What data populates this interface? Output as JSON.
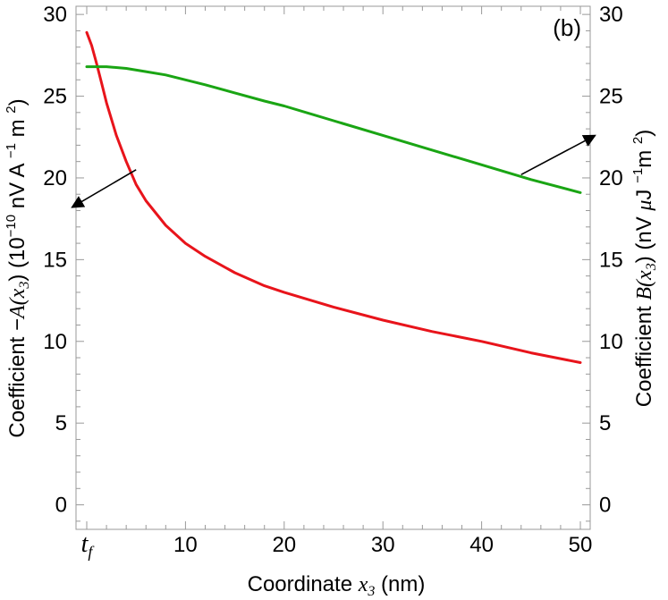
{
  "chart_data": {
    "type": "line",
    "panel_label": "(b)",
    "xlabel": "Coordinate x3 (nm)",
    "xlabel_parts": {
      "pre": "Coordinate ",
      "var": "x",
      "sub": "3",
      "post": "  (nm)"
    },
    "ylabel_left": "Coefficient −A(x3) (10−10 nV A−1 m2)",
    "ylabel_left_parts": {
      "pre": "Coefficient  −",
      "var": "A(x",
      "sub": "3",
      "close": ")",
      "unit_a": "  (10",
      "sup1": "−10",
      "unit_b": " nV A ",
      "sup2": "−1",
      "unit_c": " m ",
      "sup3": "2",
      "unit_d": ")"
    },
    "ylabel_right": "Coefficient B(x3) (nV μJ−1 m2)",
    "ylabel_right_parts": {
      "pre": "Coefficient  ",
      "var": "B(x",
      "sub": "3",
      "close": ")",
      "unit_a": "  (nV ",
      "mu": "μ",
      "unit_b": "J ",
      "sup1": "−1",
      "unit_c": "m ",
      "sup2": "2",
      "unit_d": ")"
    },
    "xlim": [
      0,
      50
    ],
    "ylim_left": [
      -1.5,
      30.5
    ],
    "ylim_right": [
      -1.5,
      30.5
    ],
    "x_ticks": [
      {
        "value": 0,
        "label": "t",
        "sub": "f"
      },
      {
        "value": 10,
        "label": "10"
      },
      {
        "value": 20,
        "label": "20"
      },
      {
        "value": 30,
        "label": "30"
      },
      {
        "value": 40,
        "label": "40"
      },
      {
        "value": 50,
        "label": "50"
      }
    ],
    "y_ticks_left": [
      "0",
      "5",
      "10",
      "15",
      "20",
      "25",
      "30"
    ],
    "y_ticks_right": [
      "0",
      "5",
      "10",
      "15",
      "20",
      "25",
      "30"
    ],
    "grid": false,
    "series": [
      {
        "axis": "left",
        "color": "#e8141b",
        "x": [
          0,
          0.5,
          1,
          1.5,
          2,
          3,
          4,
          5,
          6,
          8,
          10,
          12,
          15,
          18,
          20,
          25,
          30,
          35,
          40,
          45,
          50
        ],
        "y": [
          28.9,
          28.1,
          27.0,
          25.8,
          24.6,
          22.6,
          21.0,
          19.6,
          18.6,
          17.1,
          16.0,
          15.2,
          14.2,
          13.4,
          13.0,
          12.1,
          11.3,
          10.6,
          10.0,
          9.3,
          8.7
        ]
      },
      {
        "axis": "right",
        "color": "#1aa514",
        "x": [
          0,
          1,
          2,
          4,
          6,
          8,
          10,
          12,
          15,
          18,
          20,
          25,
          30,
          35,
          40,
          45,
          50
        ],
        "y": [
          26.8,
          26.8,
          26.8,
          26.7,
          26.5,
          26.3,
          26.0,
          25.7,
          25.2,
          24.7,
          24.4,
          23.5,
          22.6,
          21.7,
          20.8,
          19.9,
          19.1
        ]
      }
    ],
    "annotations": [
      {
        "type": "arrow",
        "from": [
          5,
          20.5
        ],
        "to": [
          -1.5,
          18.2
        ],
        "axis": "left",
        "meaning": "red curve uses left axis"
      },
      {
        "type": "arrow",
        "from": [
          44,
          20.2
        ],
        "to": [
          51.5,
          22.6
        ],
        "axis": "right",
        "meaning": "green curve uses right axis"
      }
    ]
  }
}
